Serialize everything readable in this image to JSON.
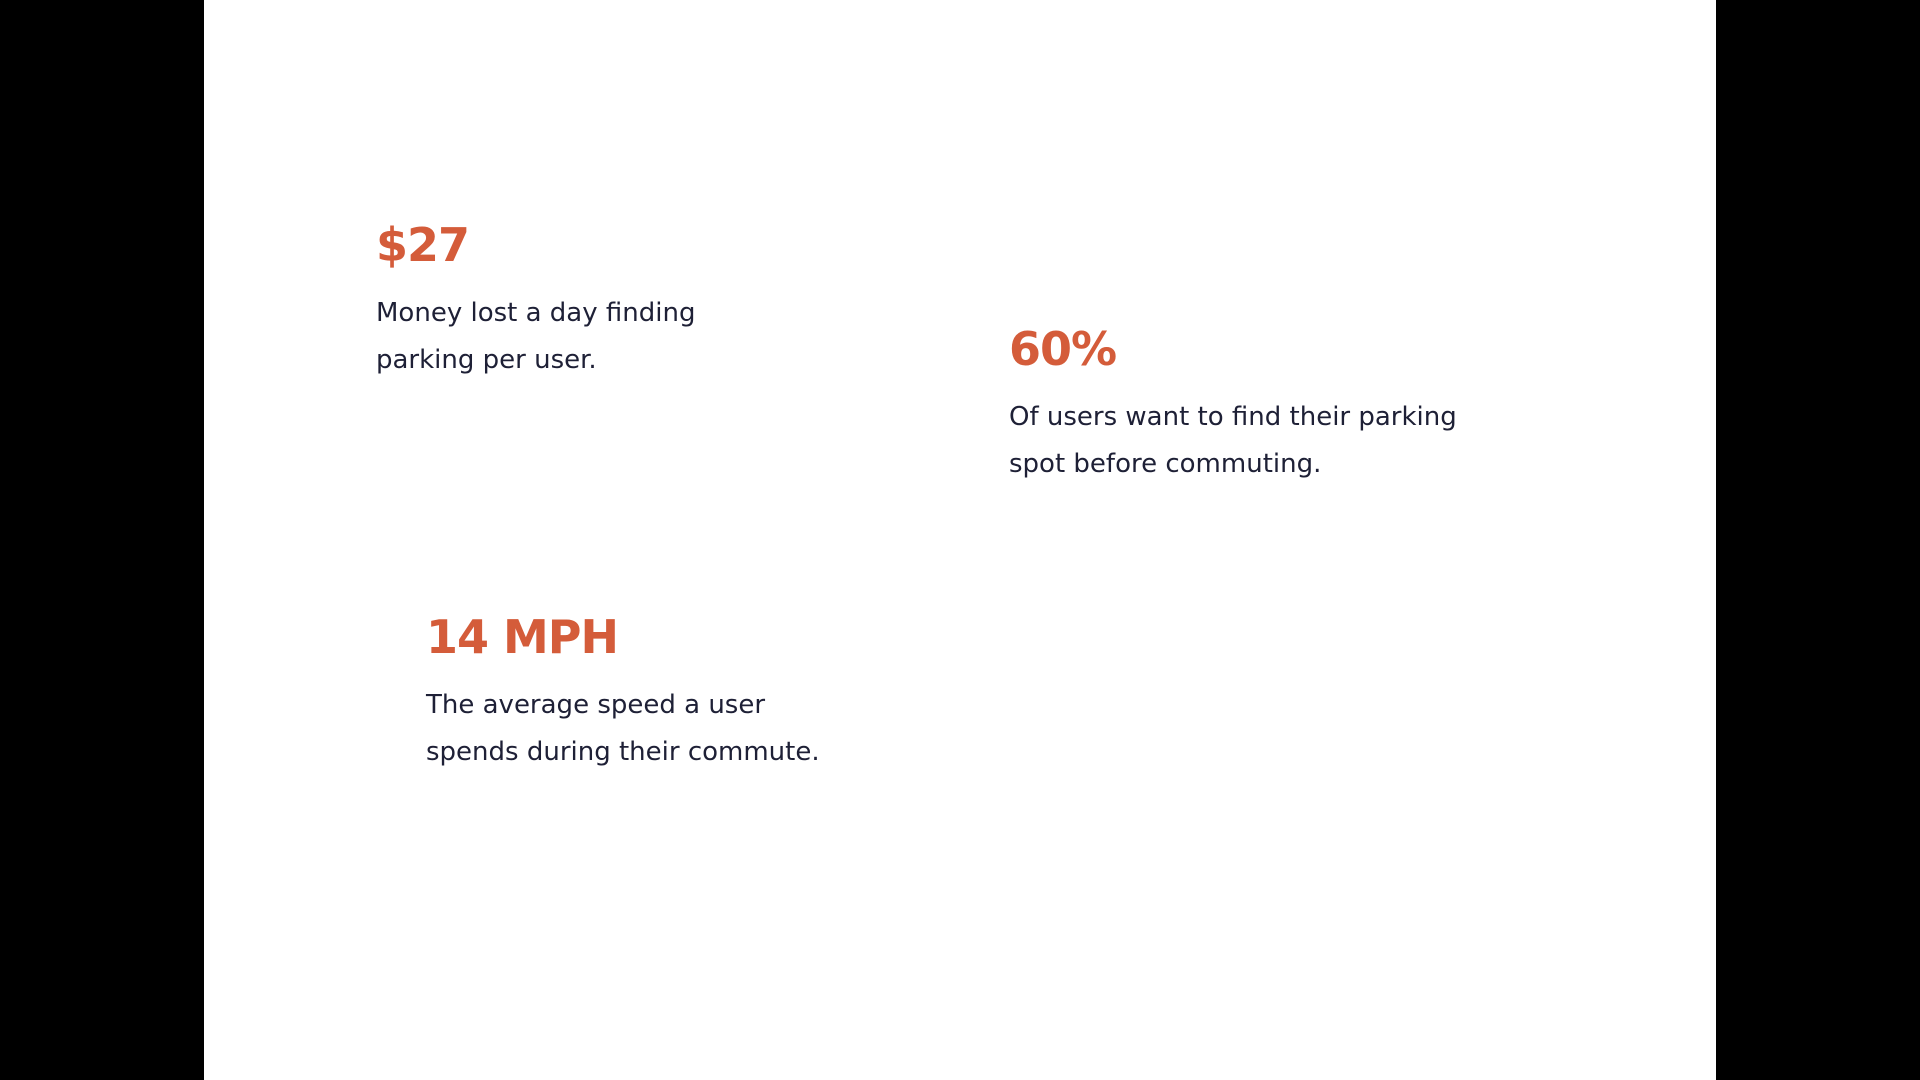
{
  "colors": {
    "accent": "#D45C3A",
    "text": "#1E2036",
    "background": "#FFFFFF",
    "letterbox": "#000000"
  },
  "stats": [
    {
      "value": "$27",
      "desc_lines": [
        "Money lost a day finding",
        "parking per user."
      ]
    },
    {
      "value": "60%",
      "desc_lines": [
        "Of users want to find their parking",
        "spot before commuting."
      ]
    },
    {
      "value": "14 MPH",
      "desc_lines": [
        "The average speed a user",
        "spends during their commute."
      ]
    }
  ]
}
